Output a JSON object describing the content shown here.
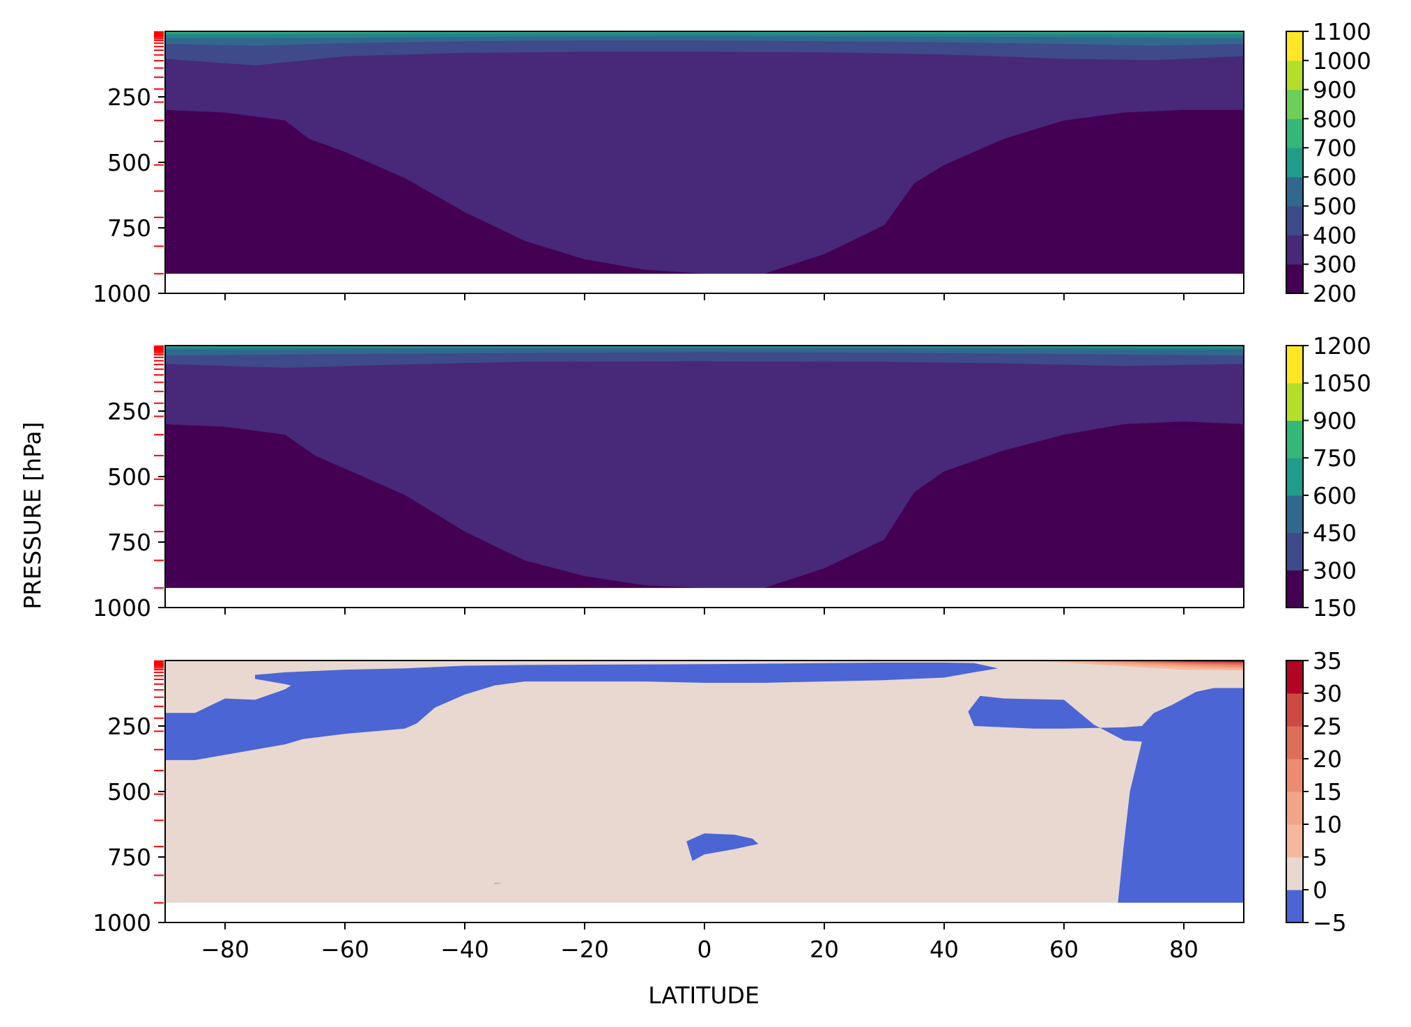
{
  "chart_data": [
    {
      "type": "contour",
      "panel": "top",
      "xlim": [
        -90,
        90
      ],
      "ylim_hPa": [
        1000,
        0
      ],
      "y_ticks": [
        250,
        500,
        750,
        1000
      ],
      "x_ticks": [
        -80,
        -60,
        -40,
        -20,
        0,
        20,
        40,
        60,
        80
      ],
      "x_ticklabels_visible": false,
      "valid_bottom_hPa": 925,
      "colorbar": {
        "cmap": "viridis",
        "levels": [
          200,
          300,
          400,
          500,
          600,
          700,
          800,
          900,
          1000,
          1100
        ],
        "ticklabels": [
          "1100",
          "1000",
          "900",
          "800",
          "700",
          "600",
          "500",
          "400",
          "300",
          "200"
        ]
      },
      "level_boundaries": {
        "300": {
          "lat": [
            -90,
            -80,
            -70,
            -66,
            -60,
            -50,
            -40,
            -30,
            -20,
            -10,
            0,
            10,
            20,
            30,
            35,
            40,
            50,
            60,
            70,
            80,
            90
          ],
          "p": [
            300,
            310,
            340,
            410,
            460,
            560,
            690,
            800,
            870,
            910,
            925,
            925,
            850,
            740,
            580,
            510,
            410,
            340,
            310,
            300,
            300
          ]
        },
        "400": {
          "lat": [
            -90,
            -75,
            -60,
            -40,
            -20,
            0,
            20,
            40,
            60,
            75,
            90
          ],
          "p": [
            105,
            130,
            95,
            82,
            78,
            78,
            80,
            88,
            105,
            110,
            95
          ]
        },
        "500": {
          "lat": [
            -90,
            -75,
            -60,
            -40,
            -20,
            0,
            20,
            40,
            60,
            75,
            90
          ],
          "p": [
            48,
            55,
            45,
            38,
            35,
            35,
            38,
            42,
            48,
            55,
            48
          ]
        },
        "600": {
          "lat": [
            -90,
            -60,
            -30,
            0,
            30,
            60,
            90
          ],
          "p": [
            25,
            24,
            20,
            18,
            20,
            22,
            25
          ]
        },
        "700": {
          "lat": [
            -90,
            -60,
            -30,
            0,
            30,
            60,
            90
          ],
          "p": [
            12,
            10,
            9,
            8,
            9,
            10,
            12
          ]
        },
        "800": {
          "lat": [
            -90,
            -40,
            0,
            40,
            90
          ],
          "p": [
            6,
            4,
            3,
            4,
            6
          ]
        }
      },
      "red_ticks_hPa": [
        2,
        5,
        8,
        12,
        17,
        22,
        28,
        35,
        45,
        58,
        72,
        90,
        112,
        140,
        175,
        220,
        270,
        340,
        420,
        510,
        610,
        710,
        820,
        925
      ]
    },
    {
      "type": "contour",
      "panel": "middle",
      "xlim": [
        -90,
        90
      ],
      "ylim_hPa": [
        1000,
        0
      ],
      "y_ticks": [
        250,
        500,
        750,
        1000
      ],
      "x_ticks": [
        -80,
        -60,
        -40,
        -20,
        0,
        20,
        40,
        60,
        80
      ],
      "x_ticklabels_visible": false,
      "valid_bottom_hPa": 925,
      "colorbar": {
        "cmap": "viridis",
        "levels": [
          150,
          300,
          450,
          600,
          750,
          900,
          1050,
          1200
        ],
        "ticklabels": [
          "1200",
          "1050",
          "900",
          "750",
          "600",
          "450",
          "300",
          "150"
        ]
      },
      "level_boundaries": {
        "300": {
          "lat": [
            -90,
            -80,
            -70,
            -65,
            -60,
            -50,
            -40,
            -30,
            -20,
            -10,
            0,
            10,
            20,
            30,
            35,
            40,
            50,
            60,
            70,
            80,
            90
          ],
          "p": [
            300,
            310,
            340,
            420,
            470,
            570,
            710,
            820,
            880,
            915,
            925,
            925,
            850,
            740,
            560,
            480,
            400,
            340,
            300,
            290,
            300
          ]
        },
        "450": {
          "lat": [
            -90,
            -70,
            -50,
            -30,
            0,
            30,
            50,
            70,
            90
          ],
          "p": [
            70,
            85,
            72,
            62,
            60,
            62,
            68,
            78,
            70
          ]
        },
        "600": {
          "lat": [
            -90,
            -60,
            -30,
            0,
            30,
            60,
            90
          ],
          "p": [
            38,
            32,
            28,
            25,
            27,
            32,
            38
          ]
        },
        "750": {
          "lat": [
            -90,
            -60,
            -30,
            0,
            30,
            60,
            90
          ],
          "p": [
            15,
            12,
            10,
            9,
            10,
            12,
            15
          ]
        },
        "900": {
          "lat": [
            -90,
            -60,
            -30,
            0,
            30,
            60,
            90
          ],
          "p": [
            7,
            5,
            4,
            4,
            4,
            5,
            7
          ]
        },
        "1050": {
          "lat": [
            -90,
            -40,
            0,
            40,
            90
          ],
          "p": [
            3,
            2,
            2,
            2,
            3
          ]
        }
      },
      "red_ticks_hPa": [
        2,
        5,
        8,
        12,
        17,
        22,
        28,
        35,
        45,
        58,
        72,
        90,
        112,
        140,
        175,
        220,
        270,
        340,
        420,
        510,
        610,
        710,
        820,
        925
      ]
    },
    {
      "type": "contour",
      "panel": "bottom",
      "xlim": [
        -90,
        90
      ],
      "ylim_hPa": [
        1000,
        0
      ],
      "y_ticks": [
        250,
        500,
        750,
        1000
      ],
      "x_ticks": [
        -80,
        -60,
        -40,
        -20,
        0,
        20,
        40,
        60,
        80
      ],
      "x_ticklabels": [
        "−80",
        "−60",
        "−40",
        "−20",
        "0",
        "20",
        "40",
        "60",
        "80"
      ],
      "xlabel": "LATITUDE",
      "valid_bottom_hPa": 925,
      "colorbar": {
        "cmap": "coolwarm",
        "levels": [
          -5,
          0,
          5,
          10,
          15,
          20,
          25,
          30,
          35
        ],
        "ticklabels": [
          "35",
          "30",
          "25",
          "20",
          "15",
          "10",
          "5",
          "0",
          "−5"
        ]
      },
      "negative_regions": [
        {
          "lat": [
            -90,
            -85,
            -80,
            -75,
            -70,
            -67,
            -60,
            -55,
            -50,
            -48,
            -45,
            -40,
            -35,
            -30,
            -20,
            -10,
            0,
            10,
            20,
            30,
            40,
            45,
            49,
            45,
            40,
            30,
            20,
            10,
            0,
            -10,
            -20,
            -30,
            -40,
            -50,
            -60,
            -70,
            -75,
            -75,
            -70,
            -69,
            -70,
            -75,
            -80,
            -85,
            -90
          ],
          "p": [
            380,
            380,
            360,
            340,
            320,
            300,
            280,
            270,
            260,
            240,
            180,
            130,
            95,
            80,
            80,
            80,
            85,
            85,
            80,
            75,
            65,
            45,
            30,
            10,
            8,
            8,
            10,
            12,
            14,
            15,
            16,
            17,
            20,
            30,
            35,
            45,
            55,
            70,
            90,
            95,
            110,
            150,
            145,
            200,
            200
          ]
        },
        {
          "lat": [
            45,
            55,
            60,
            70,
            73,
            75,
            78,
            82,
            85,
            90,
            90,
            85,
            80,
            75,
            72,
            70,
            69,
            70,
            71,
            73,
            70,
            65,
            60,
            50,
            46,
            44,
            45
          ],
          "p": [
            250,
            260,
            260,
            255,
            250,
            200,
            170,
            120,
            105,
            105,
            925,
            925,
            925,
            925,
            925,
            925,
            925,
            700,
            500,
            310,
            305,
            245,
            150,
            145,
            135,
            195,
            250
          ]
        },
        {
          "lat": [
            -3,
            0,
            5,
            8,
            9,
            5,
            0,
            -2,
            -3
          ],
          "p": [
            690,
            660,
            665,
            680,
            700,
            720,
            740,
            765,
            690
          ]
        },
        {
          "lat": [
            -35,
            -33.5,
            -35
          ],
          "p": [
            850,
            850,
            852
          ]
        }
      ],
      "warm_region": {
        "lat": [
          55,
          60,
          70,
          80,
          90,
          90,
          80,
          70,
          60,
          55
        ],
        "p": [
          3,
          8,
          22,
          35,
          38,
          3,
          3,
          3,
          3,
          3
        ]
      },
      "red_ticks_hPa": [
        2,
        5,
        8,
        12,
        17,
        22,
        28,
        35,
        45,
        58,
        72,
        90,
        112,
        140,
        175,
        220,
        270,
        340,
        420,
        510,
        610,
        710,
        820,
        925
      ]
    }
  ],
  "ylabel": "PRESSURE [hPa]",
  "y_ticklabels": [
    "250",
    "500",
    "750",
    "1000"
  ],
  "colors": {
    "viridis": [
      "#440154",
      "#482878",
      "#3e4a89",
      "#31688e",
      "#26828e",
      "#1f9e89",
      "#35b779",
      "#6ece58",
      "#b5de2b",
      "#fde725"
    ],
    "coolwarm_neg": "#4b65d4",
    "coolwarm_pos": [
      "#e8d8d0",
      "#f6b89c",
      "#f3a488",
      "#ec8b70",
      "#de6e58",
      "#cc4a42",
      "#b40426"
    ],
    "red_tick": "#ff0000"
  }
}
